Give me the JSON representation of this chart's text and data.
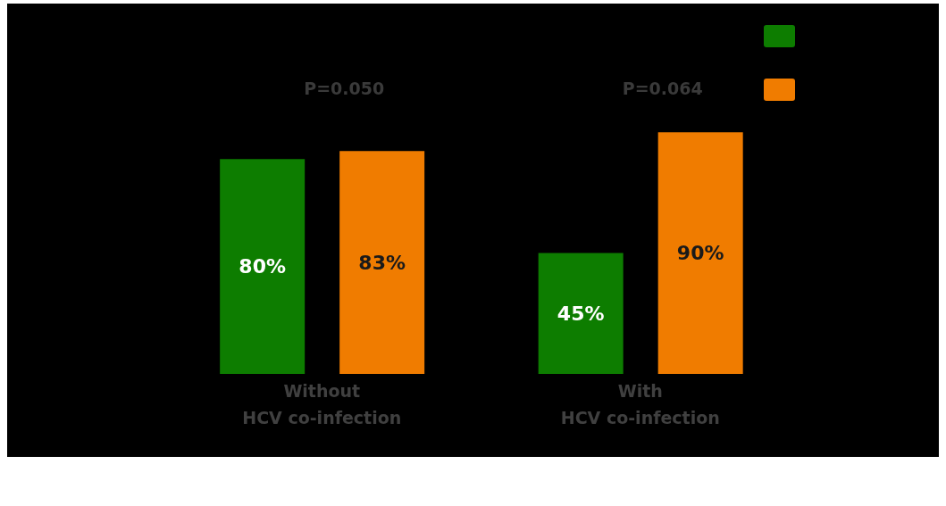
{
  "chart_data": {
    "type": "bar",
    "categories": [
      "Without HCV co-infection",
      "With HCV co-infection"
    ],
    "series": [
      {
        "color": "#0d7d00",
        "values": [
          80,
          45
        ],
        "value_labels": [
          "80%",
          "45%"
        ]
      },
      {
        "color": "#f07c00",
        "values": [
          83,
          90
        ],
        "value_labels": [
          "83%",
          "90%"
        ]
      }
    ],
    "annotations": [
      "P=0.050",
      "P=0.064"
    ]
  }
}
